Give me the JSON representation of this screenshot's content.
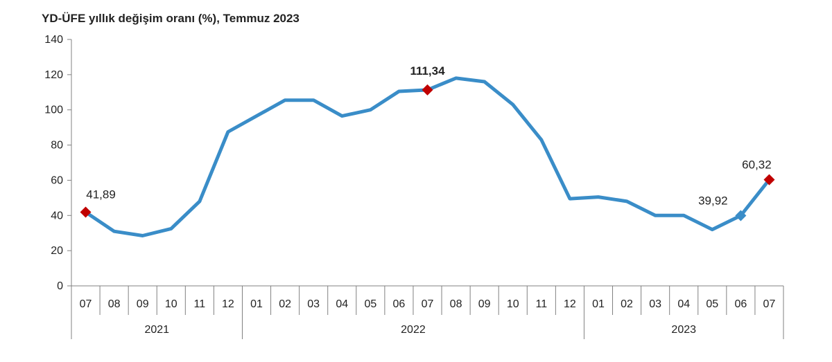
{
  "chart_data": {
    "type": "line",
    "title": "YD-ÜFE yıllık değişim oranı (%), Temmuz 2023",
    "xlabel": "",
    "ylabel": "",
    "ylim": [
      0,
      140
    ],
    "yticks": [
      0,
      20,
      40,
      60,
      80,
      100,
      120,
      140
    ],
    "grid": false,
    "categories": [
      "07",
      "08",
      "09",
      "10",
      "11",
      "12",
      "01",
      "02",
      "03",
      "04",
      "05",
      "06",
      "07",
      "08",
      "09",
      "10",
      "11",
      "12",
      "01",
      "02",
      "03",
      "04",
      "05",
      "06",
      "07"
    ],
    "year_groups": [
      {
        "label": "2021",
        "count": 6
      },
      {
        "label": "2022",
        "count": 12
      },
      {
        "label": "2023",
        "count": 7
      }
    ],
    "series": [
      {
        "values": [
          41.89,
          31,
          28.5,
          32.5,
          48,
          87.5,
          96.5,
          105.5,
          105.5,
          96.5,
          100,
          110.5,
          111.34,
          118,
          116,
          103,
          83,
          49.5,
          50.5,
          48,
          40,
          40,
          32,
          39.92,
          60.32
        ],
        "color": "#3a8dc8"
      }
    ],
    "markers": [
      {
        "index": 0,
        "color": "#c00000",
        "shape": "diamond"
      },
      {
        "index": 12,
        "color": "#c00000",
        "shape": "diamond"
      },
      {
        "index": 23,
        "color": "#3a8dc8",
        "shape": "diamond"
      },
      {
        "index": 24,
        "color": "#c00000",
        "shape": "diamond"
      }
    ],
    "annotations": [
      {
        "index": 0,
        "text": "41,89",
        "bold": false
      },
      {
        "index": 12,
        "text": "111,34",
        "bold": true
      },
      {
        "index": 23,
        "text": "39,92",
        "bold": false
      },
      {
        "index": 24,
        "text": "60,32",
        "bold": false
      }
    ]
  }
}
